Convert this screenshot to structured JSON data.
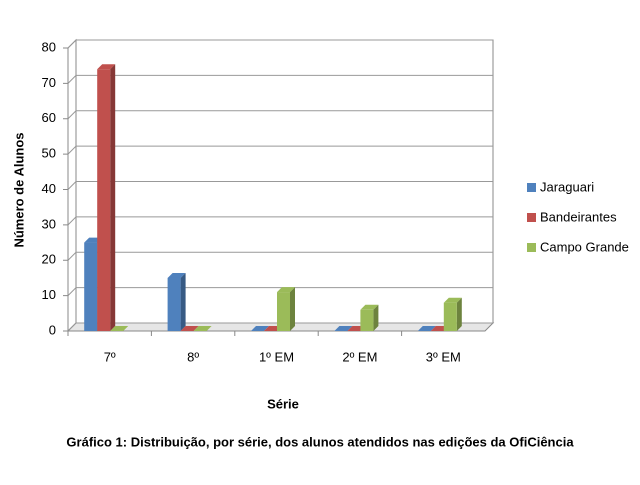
{
  "chart_data": {
    "type": "bar",
    "title": "Gráfico 1: Distribuição, por série, dos alunos atendidos nas edições da OfiCiência",
    "x_label": "Série",
    "y_label": "Número de Alunos",
    "categories": [
      "7º",
      "8º",
      "1º EM",
      "2º EM",
      "3º EM"
    ],
    "series": [
      {
        "name": "Jaraguari",
        "color": "#4f81bd",
        "values": [
          25,
          15,
          0,
          0,
          0
        ]
      },
      {
        "name": "Bandeirantes",
        "color": "#c0504d",
        "values": [
          74,
          0,
          0,
          0,
          0
        ]
      },
      {
        "name": "Campo Grande",
        "color": "#9bbb59",
        "values": [
          0,
          0,
          11,
          6,
          8
        ]
      }
    ],
    "ylim": [
      0,
      80
    ],
    "yticks": [
      0,
      10,
      20,
      30,
      40,
      50,
      60,
      70,
      80
    ],
    "grid": true,
    "legend": "right"
  }
}
